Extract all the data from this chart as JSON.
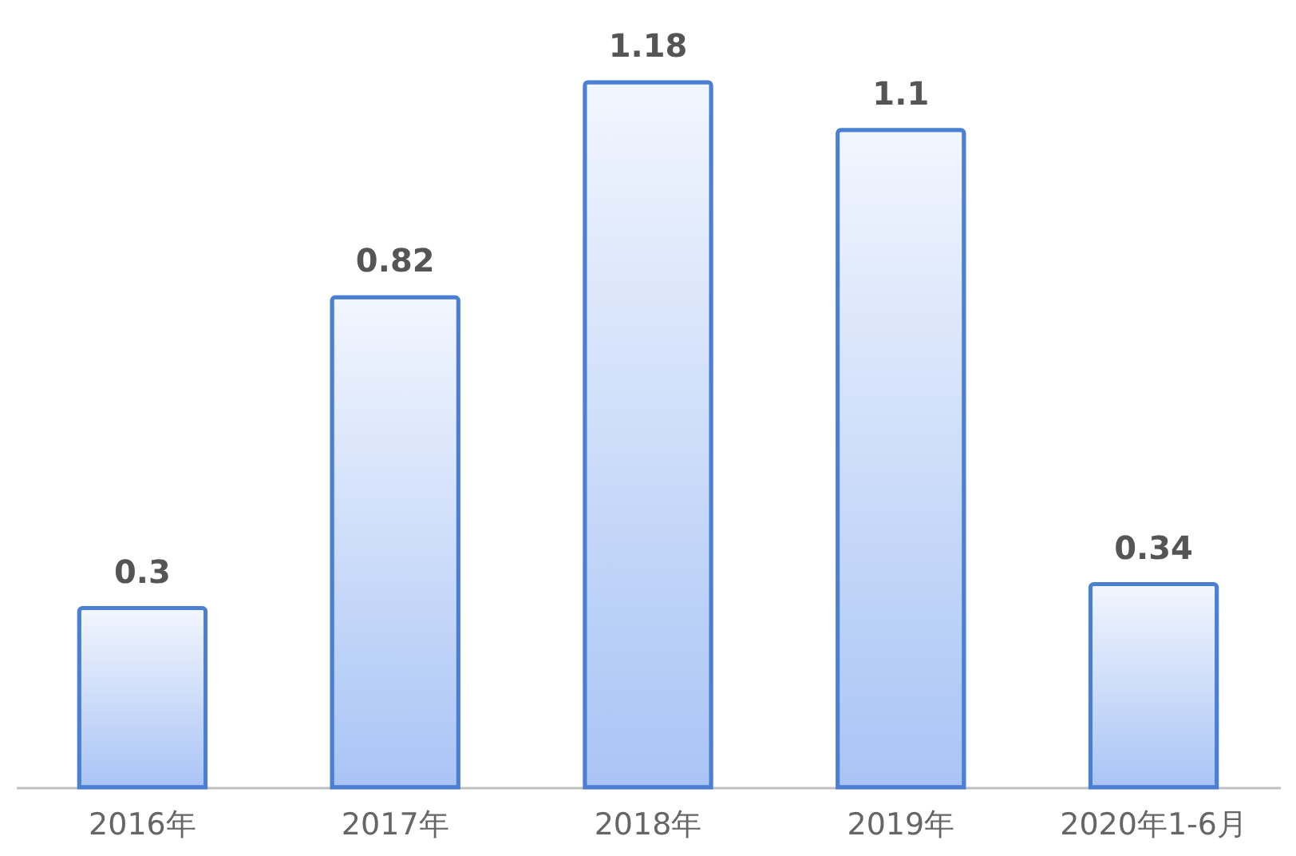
{
  "chart_data": {
    "type": "bar",
    "categories": [
      "2016年",
      "2017年",
      "2018年",
      "2019年",
      "2020年1-6月"
    ],
    "values": [
      0.3,
      0.82,
      1.18,
      1.1,
      0.34
    ],
    "color": "#4a7fd4",
    "data_labels": true,
    "grid": false
  }
}
